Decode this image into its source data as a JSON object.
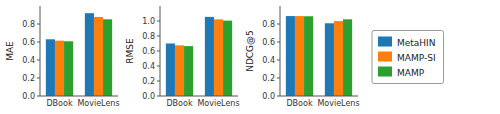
{
  "chart_data": [
    {
      "type": "bar",
      "y_label": "MAE",
      "categories": [
        "DBook",
        "MovieLens"
      ],
      "series": [
        {
          "name": "MetaHIN",
          "color": "#1f77b4",
          "values": [
            0.63,
            0.92
          ]
        },
        {
          "name": "MAMP-SI",
          "color": "#ff7f0e",
          "values": [
            0.615,
            0.878
          ]
        },
        {
          "name": "MAMP",
          "color": "#2ca02c",
          "values": [
            0.608,
            0.852
          ]
        }
      ],
      "ylim": [
        0.0,
        1.0
      ],
      "yticks": [
        {
          "value": 0,
          "label": "0.0"
        },
        0.2,
        0.4,
        0.6,
        0.8
      ],
      "grid": false,
      "legend": "right"
    },
    {
      "type": "bar",
      "y_label": "RMSE",
      "categories": [
        "DBook",
        "MovieLens"
      ],
      "series": [
        {
          "name": "MetaHIN",
          "color": "#1f77b4",
          "values": [
            0.7,
            1.055
          ]
        },
        {
          "name": "MAMP-SI",
          "color": "#ff7f0e",
          "values": [
            0.675,
            1.022
          ]
        },
        {
          "name": "MAMP",
          "color": "#2ca02c",
          "values": [
            0.665,
            1.005
          ]
        }
      ],
      "ylim": [
        0.0,
        1.2
      ],
      "yticks": [
        {
          "value": 0,
          "label": "0.0"
        },
        0.2,
        0.4,
        0.6,
        0.8,
        {
          "value": 1,
          "label": "1.0"
        }
      ],
      "grid": false
    },
    {
      "type": "bar",
      "y_label": "NDCG@5",
      "categories": [
        "DBook",
        "MovieLens"
      ],
      "series": [
        {
          "name": "MetaHIN",
          "color": "#1f77b4",
          "values": [
            0.888,
            0.808
          ]
        },
        {
          "name": "MAMP-SI",
          "color": "#ff7f0e",
          "values": [
            0.888,
            0.832
          ]
        },
        {
          "name": "MAMP",
          "color": "#2ca02c",
          "values": [
            0.886,
            0.852
          ]
        }
      ],
      "ylim": [
        0.0,
        1.0
      ],
      "yticks": [
        {
          "value": 0,
          "label": "0.0"
        },
        0.2,
        0.4,
        0.6,
        0.8
      ],
      "grid": false
    }
  ]
}
